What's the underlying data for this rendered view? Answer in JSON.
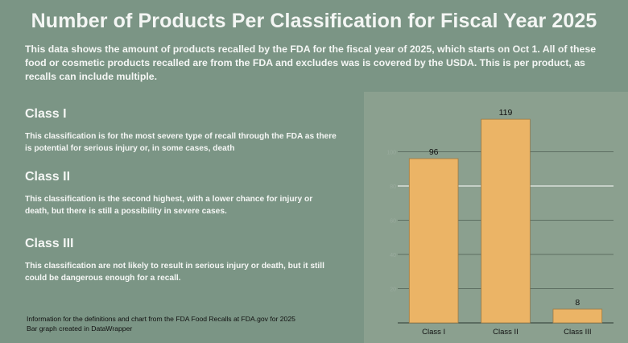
{
  "title": "Number of Products Per Classification for Fiscal Year 2025",
  "subtitle": "This data shows the amount of products recalled by the FDA for the fiscal year of 2025, which starts on Oct 1. All of these food or cosmetic products recalled are from the FDA and excludes was is covered by the USDA. This is per product, as recalls can include multiple.",
  "classes": [
    {
      "heading": "Class I",
      "description": "This classification is for the most severe type of recall through the FDA as there is potential for serious injury or, in some cases, death"
    },
    {
      "heading": "Class II",
      "description": "This classification is the second highest, with a lower chance for injury or death, but there is still a possibility in severe cases."
    },
    {
      "heading": "Class III",
      "description": "This classification are not likely to result in serious injury or death, but it still could be dangerous enough for a recall."
    }
  ],
  "source": {
    "line1": "Information for the definitions and chart from the FDA Food Recalls at FDA.gov for 2025",
    "line2": "Bar graph created in DataWrapper"
  },
  "colors": {
    "background": "#7b9585",
    "chart_panel": "#8ba08f",
    "bar": "#ebb466",
    "bar_outline": "#9c7a45",
    "gridline": "#5c6e61",
    "highlight_gridline": "#ffffff"
  },
  "chart_data": {
    "type": "bar",
    "categories": [
      "Class I",
      "Class II",
      "Class III"
    ],
    "values": [
      96,
      119,
      8
    ],
    "value_labels": [
      "96",
      "119",
      "8"
    ],
    "ylim": [
      0,
      120
    ],
    "yticks": [
      20,
      40,
      60,
      80,
      100
    ],
    "grid": true,
    "legend": "none"
  }
}
